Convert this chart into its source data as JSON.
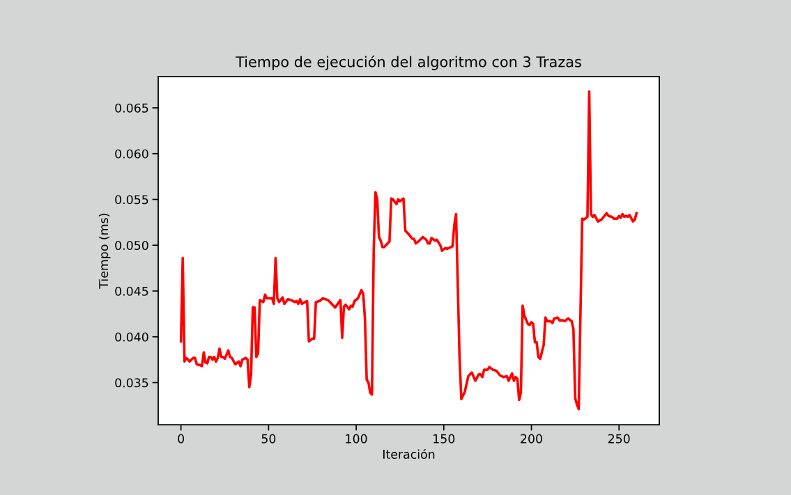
{
  "chart_data": {
    "type": "line",
    "title": "Tiempo de ejecución del algoritmo con 3 Trazas",
    "xlabel": "Iteración",
    "ylabel": "Tiempo (ms)",
    "xlim": [
      -13,
      273
    ],
    "xticks": [
      0,
      50,
      100,
      150,
      200,
      250
    ],
    "ylim": [
      0.0304,
      0.0684
    ],
    "yticks": [
      0.035,
      {
        "value": 0.04,
        "label": "0.040"
      },
      0.045,
      {
        "value": 0.05,
        "label": "0.050"
      },
      0.055,
      {
        "value": 0.06,
        "label": "0.060"
      },
      0.065
    ],
    "grid": false,
    "series": [
      {
        "color": "#ff0000",
        "x": [
          0,
          1,
          2,
          3,
          5,
          7,
          8,
          9,
          11,
          12,
          13,
          14,
          15,
          16,
          17,
          18,
          19,
          20,
          21,
          22,
          23,
          24,
          25,
          27,
          28,
          29,
          31,
          33,
          34,
          35,
          37,
          38,
          39,
          40,
          41,
          42,
          43,
          44,
          45,
          47,
          48,
          49,
          52,
          53,
          54,
          55,
          56,
          58,
          59,
          61,
          63,
          65,
          66,
          67,
          68,
          69,
          72,
          73,
          75,
          76,
          77,
          79,
          81,
          84,
          86,
          88,
          91,
          92,
          93,
          94,
          96,
          97,
          98,
          99,
          101,
          103,
          104,
          105,
          106,
          107,
          108,
          109,
          110,
          111,
          112,
          113,
          114,
          115,
          116,
          118,
          119,
          120,
          121,
          123,
          124,
          125,
          127,
          128,
          130,
          132,
          133,
          134,
          136,
          138,
          140,
          141,
          142,
          143,
          145,
          146,
          148,
          149,
          151,
          152,
          155,
          156,
          157,
          159,
          160,
          162,
          164,
          166,
          168,
          170,
          171,
          172,
          173,
          175,
          176,
          178,
          180,
          182,
          184,
          186,
          187,
          189,
          190,
          191,
          192,
          193,
          194,
          195,
          196,
          198,
          199,
          200,
          201,
          202,
          203,
          204,
          205,
          207,
          208,
          209,
          211,
          212,
          213,
          215,
          216,
          218,
          219,
          221,
          223,
          224,
          225,
          226,
          227,
          229,
          230,
          232,
          233,
          234,
          235,
          236,
          238,
          240,
          243,
          244,
          246,
          247,
          249,
          250,
          251,
          252,
          253,
          254,
          255,
          256,
          258,
          259,
          260
        ],
        "values": [
          0.0395,
          0.0486,
          0.0373,
          0.0377,
          0.0373,
          0.0377,
          0.0377,
          0.037,
          0.0369,
          0.0368,
          0.0383,
          0.0372,
          0.0371,
          0.0378,
          0.0378,
          0.0375,
          0.0378,
          0.0373,
          0.0377,
          0.0387,
          0.0378,
          0.0378,
          0.0376,
          0.0385,
          0.0378,
          0.0377,
          0.037,
          0.0373,
          0.0368,
          0.0375,
          0.0377,
          0.0375,
          0.0345,
          0.0359,
          0.0432,
          0.0432,
          0.0378,
          0.0382,
          0.044,
          0.0438,
          0.0446,
          0.0442,
          0.0442,
          0.0436,
          0.0486,
          0.0442,
          0.0438,
          0.0443,
          0.0436,
          0.0441,
          0.044,
          0.0438,
          0.0439,
          0.0436,
          0.0441,
          0.0436,
          0.0439,
          0.0395,
          0.0398,
          0.0398,
          0.0438,
          0.0439,
          0.0442,
          0.044,
          0.0436,
          0.0432,
          0.044,
          0.0399,
          0.0433,
          0.0435,
          0.043,
          0.0434,
          0.0433,
          0.0439,
          0.0442,
          0.0451,
          0.0447,
          0.042,
          0.0353,
          0.035,
          0.0339,
          0.0337,
          0.0494,
          0.0558,
          0.055,
          0.0509,
          0.0505,
          0.0498,
          0.0498,
          0.0502,
          0.0504,
          0.0551,
          0.055,
          0.0545,
          0.055,
          0.0548,
          0.0551,
          0.0516,
          0.0512,
          0.0507,
          0.0507,
          0.0502,
          0.0505,
          0.0509,
          0.0506,
          0.0502,
          0.0502,
          0.0508,
          0.0505,
          0.0506,
          0.05,
          0.0494,
          0.0497,
          0.0496,
          0.0499,
          0.0522,
          0.0534,
          0.0377,
          0.0332,
          0.034,
          0.0357,
          0.0361,
          0.0352,
          0.0359,
          0.0359,
          0.0356,
          0.0364,
          0.0364,
          0.0367,
          0.0364,
          0.0363,
          0.0358,
          0.0356,
          0.0357,
          0.0352,
          0.036,
          0.0352,
          0.0356,
          0.0354,
          0.0331,
          0.0339,
          0.0434,
          0.0423,
          0.0414,
          0.0413,
          0.0416,
          0.0414,
          0.0394,
          0.0394,
          0.0378,
          0.0376,
          0.0391,
          0.0421,
          0.0417,
          0.0417,
          0.0415,
          0.042,
          0.0421,
          0.0418,
          0.0418,
          0.0417,
          0.042,
          0.0417,
          0.0408,
          0.0333,
          0.0326,
          0.0321,
          0.0529,
          0.0528,
          0.0531,
          0.0668,
          0.0534,
          0.0531,
          0.0533,
          0.0526,
          0.0528,
          0.0535,
          0.0532,
          0.0531,
          0.0529,
          0.0529,
          0.0532,
          0.053,
          0.0534,
          0.0531,
          0.0532,
          0.0531,
          0.0533,
          0.0526,
          0.0528,
          0.0535
        ]
      }
    ]
  }
}
